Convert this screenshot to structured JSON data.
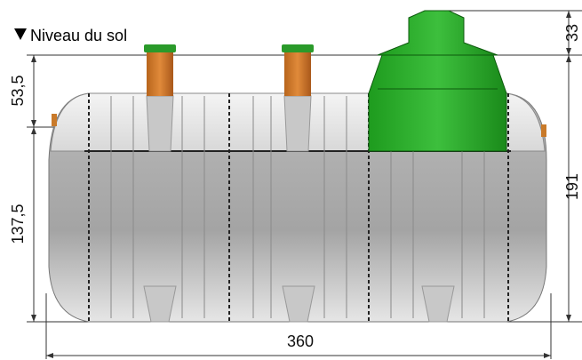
{
  "ground_label": "Niveau du sol",
  "dimensions": {
    "top": "33",
    "upper_left": "53,5",
    "lower_left": "137,5",
    "right": "191",
    "bottom": "360"
  }
}
